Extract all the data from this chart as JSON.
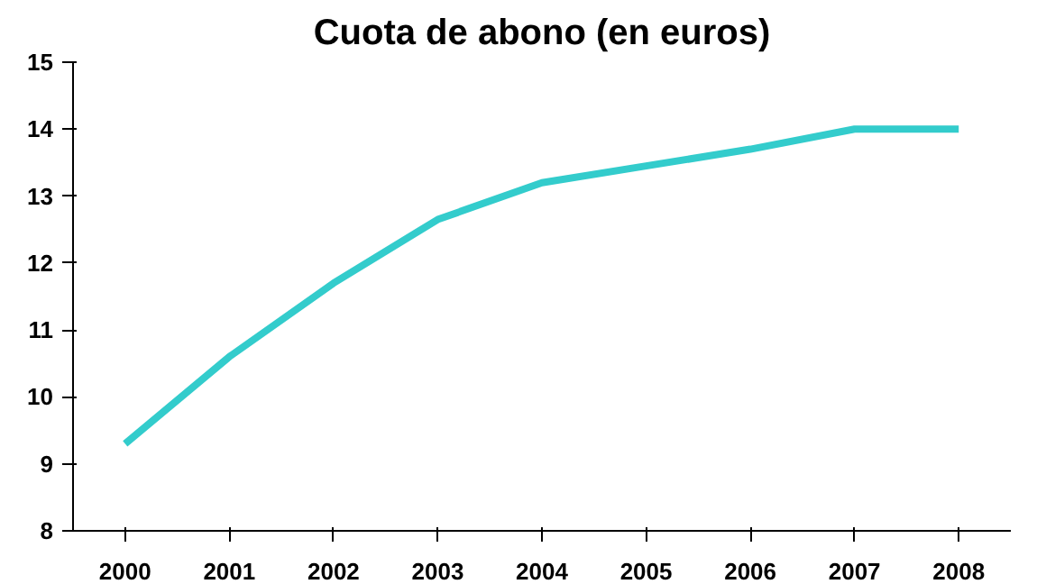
{
  "chart_data": {
    "type": "line",
    "title": "Cuota de abono (en euros)",
    "categories": [
      "2000",
      "2001",
      "2002",
      "2003",
      "2004",
      "2005",
      "2006",
      "2007",
      "2008"
    ],
    "series": [
      {
        "color": "#33cccc",
        "values": [
          9.3,
          10.6,
          11.7,
          12.65,
          13.2,
          13.45,
          13.7,
          14.0,
          14.0
        ]
      }
    ],
    "ylim": [
      8,
      15
    ],
    "yticks": [
      8,
      9,
      10,
      11,
      12,
      13,
      14,
      15
    ],
    "grid": false,
    "marker": "none",
    "line_style": "solid"
  }
}
